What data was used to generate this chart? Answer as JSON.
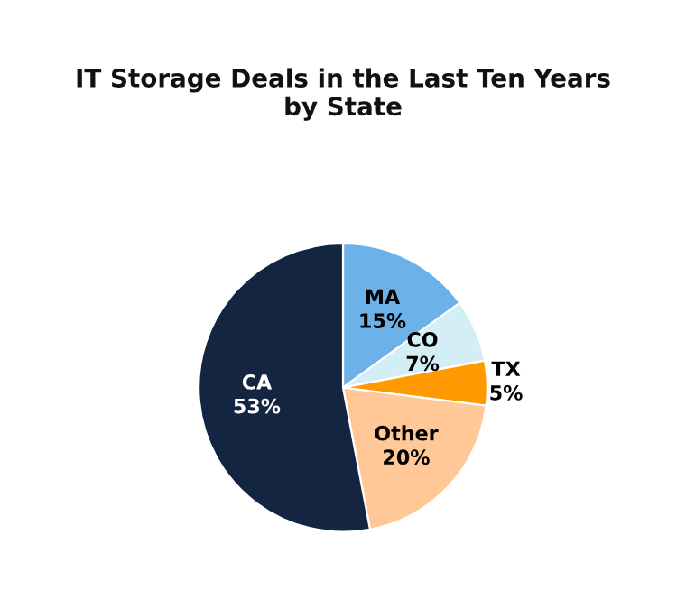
{
  "chart_data": {
    "type": "pie",
    "title": "IT Storage Deals in the Last Ten Years\nby State",
    "categories": [
      "MA",
      "CO",
      "TX",
      "Other",
      "CA"
    ],
    "values": [
      15,
      7,
      5,
      20,
      53
    ],
    "value_labels": [
      "15%",
      "7%",
      "5%",
      "20%",
      "53%"
    ],
    "colors": [
      "#6cb2e8",
      "#d3eef4",
      "#ff9900",
      "#ffc896",
      "#132540"
    ],
    "legend": false
  }
}
